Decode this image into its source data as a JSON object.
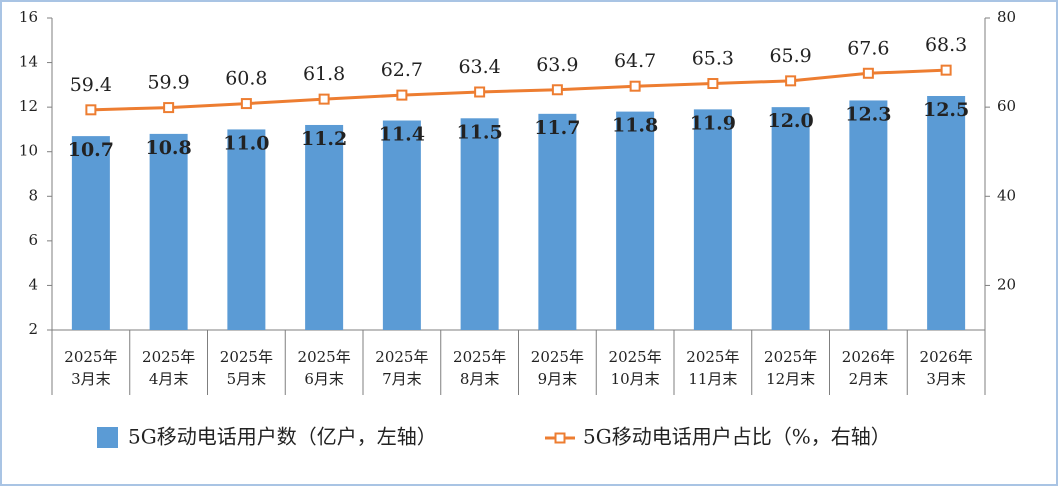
{
  "chart_data": {
    "type": "bar",
    "categories": [
      [
        "2025年",
        "3月末"
      ],
      [
        "2025年",
        "4月末"
      ],
      [
        "2025年",
        "5月末"
      ],
      [
        "2025年",
        "6月末"
      ],
      [
        "2025年",
        "7月末"
      ],
      [
        "2025年",
        "8月末"
      ],
      [
        "2025年",
        "9月末"
      ],
      [
        "2025年",
        "10月末"
      ],
      [
        "2025年",
        "11月末"
      ],
      [
        "2025年",
        "12月末"
      ],
      [
        "2026年",
        "2月末"
      ],
      [
        "2026年",
        "3月末"
      ]
    ],
    "series": [
      {
        "name": "5G移动电话用户数（亿户，左轴）",
        "type": "bar",
        "color": "#5b9bd5",
        "axis": "y",
        "values": [
          10.7,
          10.8,
          11.0,
          11.2,
          11.4,
          11.5,
          11.7,
          11.8,
          11.9,
          12.0,
          12.3,
          12.5
        ],
        "value_labels": [
          "10.7",
          "10.8",
          "11.0",
          "11.2",
          "11.4",
          "11.5",
          "11.7",
          "11.8",
          "11.9",
          "12.0",
          "12.3",
          "12.5"
        ]
      },
      {
        "name": "5G移动电话用户占比（%，右轴）",
        "type": "line",
        "color": "#ed7d31",
        "axis": "y2",
        "values": [
          59.4,
          59.9,
          60.8,
          61.8,
          62.7,
          63.4,
          63.9,
          64.7,
          65.3,
          65.9,
          67.6,
          68.3
        ]
      }
    ],
    "ylim": [
      2,
      16
    ],
    "yticks": [
      2,
      4,
      6,
      8,
      10,
      12,
      14,
      16
    ],
    "y2lim": [
      10,
      80
    ],
    "y2ticks": [
      20,
      40,
      60,
      80
    ],
    "grid": false
  }
}
